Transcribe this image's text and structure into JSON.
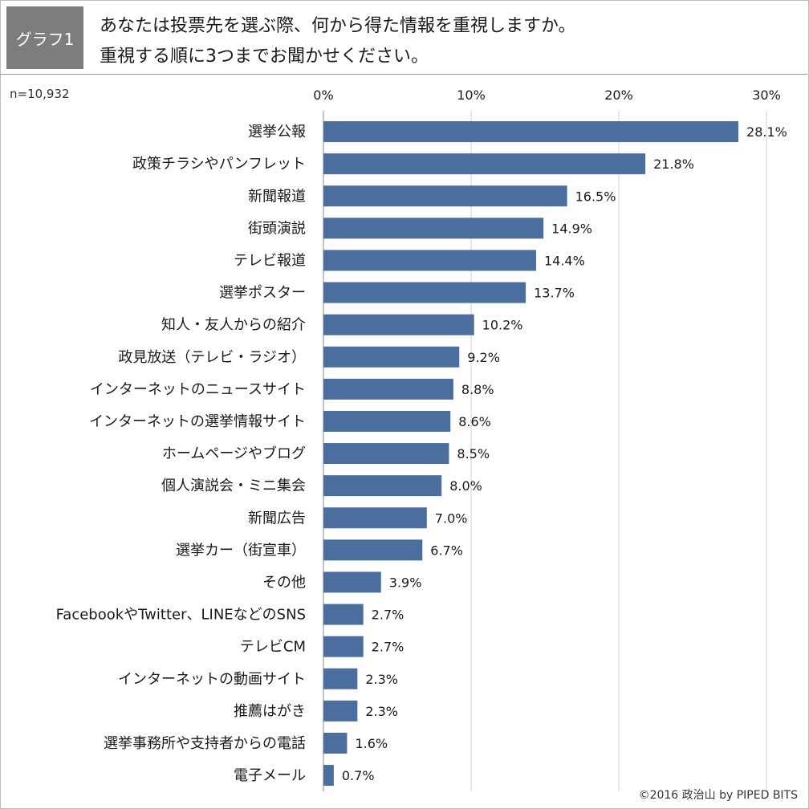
{
  "badge": "グラフ1",
  "question": {
    "line1": "あなたは投票先を選ぶ際、何から得た情報を重視しますか。",
    "line2": "重視する順に3つまでお聞かせください。"
  },
  "sample_size": "n=10,932",
  "credit": "©2016 政治山 by PIPED BITS",
  "colors": {
    "bar": "#4a6f9f",
    "grid": "#d0d0d0",
    "axis": "#888888"
  },
  "chart_data": {
    "type": "bar",
    "orientation": "horizontal",
    "title": "",
    "xlabel": "",
    "ylabel": "",
    "xlim": [
      0,
      30
    ],
    "x_ticks": [
      "0%",
      "10%",
      "20%",
      "30%"
    ],
    "x_tick_values": [
      0,
      10,
      20,
      30
    ],
    "grid": true,
    "categories": [
      "選挙公報",
      "政策チラシやパンフレット",
      "新聞報道",
      "街頭演説",
      "テレビ報道",
      "選挙ポスター",
      "知人・友人からの紹介",
      "政見放送（テレビ・ラジオ）",
      "インターネットのニュースサイト",
      "インターネットの選挙情報サイト",
      "ホームページやブログ",
      "個人演説会・ミニ集会",
      "新聞広告",
      "選挙カー（街宣車）",
      "その他",
      "FacebookやTwitter、LINEなどのSNS",
      "テレビCM",
      "インターネットの動画サイト",
      "推薦はがき",
      "選挙事務所や支持者からの電話",
      "電子メール"
    ],
    "values": [
      28.1,
      21.8,
      16.5,
      14.9,
      14.4,
      13.7,
      10.2,
      9.2,
      8.8,
      8.6,
      8.5,
      8.0,
      7.0,
      6.7,
      3.9,
      2.7,
      2.7,
      2.3,
      2.3,
      1.6,
      0.7
    ],
    "value_labels": [
      "28.1%",
      "21.8%",
      "16.5%",
      "14.9%",
      "14.4%",
      "13.7%",
      "10.2%",
      "9.2%",
      "8.8%",
      "8.6%",
      "8.5%",
      "8.0%",
      "7.0%",
      "6.7%",
      "3.9%",
      "2.7%",
      "2.7%",
      "2.3%",
      "2.3%",
      "1.6%",
      "0.7%"
    ]
  }
}
